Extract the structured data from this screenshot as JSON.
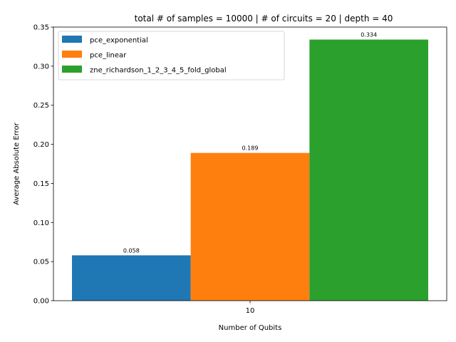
{
  "chart_data": {
    "type": "bar",
    "title": "total # of samples = 10000 | # of circuits = 20 | depth = 40",
    "xlabel": "Number of Qubits",
    "ylabel": "Average Absolute Error",
    "categories": [
      "10"
    ],
    "ylim": [
      0,
      0.35
    ],
    "yticks": [
      "0.00",
      "0.05",
      "0.10",
      "0.15",
      "0.20",
      "0.25",
      "0.30",
      "0.35"
    ],
    "grid": false,
    "legend_position": "top-left",
    "series": [
      {
        "name": "pce_exponential",
        "values": [
          0.058
        ],
        "label": "0.058",
        "color": "#1f77b4"
      },
      {
        "name": "pce_linear",
        "values": [
          0.189
        ],
        "label": "0.189",
        "color": "#ff7f0e"
      },
      {
        "name": "zne_richardson_1_2_3_4_5_fold_global",
        "values": [
          0.334
        ],
        "label": "0.334",
        "color": "#2ca02c"
      }
    ]
  }
}
